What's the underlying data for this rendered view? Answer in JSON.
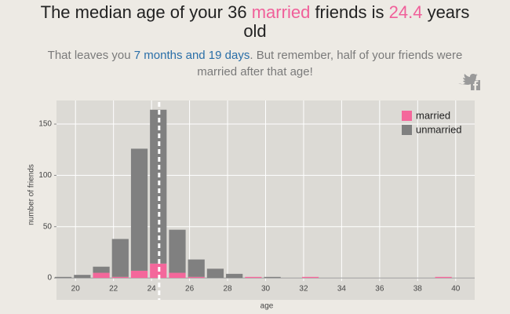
{
  "chart_data": {
    "type": "histogram",
    "title": {
      "before": "The median age of your",
      "count": 36,
      "highlight": "married",
      "middle": "friends is",
      "median": 24.4,
      "after": "years old"
    },
    "subtitle": {
      "before": "That leaves you",
      "duration": "7 months and 19 days",
      "after": ". But remember, half of your friends were married after that age!"
    },
    "x_label": "age",
    "y_label": "number of friends",
    "bins": [
      19,
      20,
      21,
      22,
      23,
      24,
      25,
      26,
      27,
      28,
      29,
      30,
      31,
      32,
      33,
      34,
      35,
      36,
      37,
      38,
      39,
      40,
      41
    ],
    "series": [
      {
        "name": "married",
        "color": "#f4679b",
        "values": [
          0,
          0,
          5,
          1,
          7,
          14,
          5,
          1,
          0,
          0,
          1,
          0,
          0,
          1,
          0,
          0,
          0,
          0,
          0,
          0,
          1,
          0
        ]
      },
      {
        "name": "unmarried",
        "color": "#808080",
        "values": [
          1,
          3,
          6,
          37,
          119,
          150,
          42,
          17,
          9,
          4,
          0,
          1,
          0,
          0,
          0,
          0,
          0,
          0,
          0,
          0,
          0,
          0
        ]
      }
    ],
    "xlim": [
      19,
      41
    ],
    "xticks": [
      20,
      22,
      24,
      26,
      28,
      30,
      32,
      34,
      36,
      38,
      40
    ],
    "ylim": [
      -3,
      173
    ],
    "yticks": [
      0,
      50,
      100,
      150
    ],
    "grid": true,
    "legend": "top-right"
  }
}
